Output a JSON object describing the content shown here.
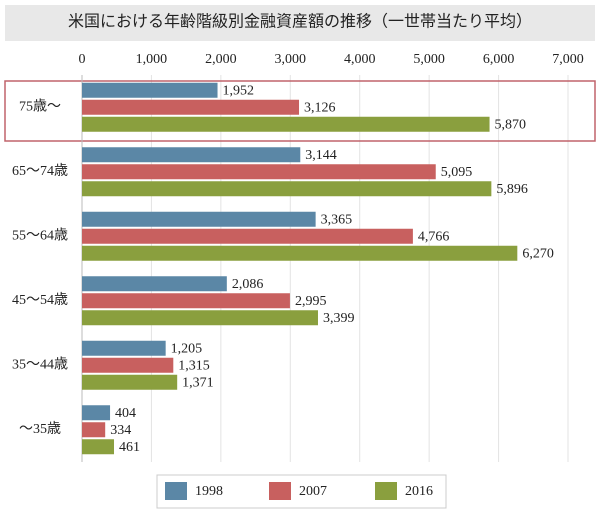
{
  "chart_data": {
    "type": "bar",
    "orientation": "horizontal",
    "title": "米国における年齢階級別金融資産額の推移（一世帯当たり平均）",
    "categories": [
      "75歳〜",
      "65〜74歳",
      "55〜64歳",
      "45〜54歳",
      "35〜44歳",
      "〜35歳"
    ],
    "series": [
      {
        "name": "1998",
        "color": "#5b87a6",
        "values": [
          1952,
          3144,
          3365,
          2086,
          1205,
          404
        ],
        "value_labels": [
          "1,952",
          "3,144",
          "3,365",
          "2,086",
          "1,205",
          "404"
        ]
      },
      {
        "name": "2007",
        "color": "#c8605f",
        "values": [
          3126,
          5095,
          4766,
          2995,
          1315,
          334
        ],
        "value_labels": [
          "3,126",
          "5,095",
          "4,766",
          "2,995",
          "1,315",
          "334"
        ]
      },
      {
        "name": "2016",
        "color": "#8a9f3e",
        "values": [
          5870,
          5896,
          6270,
          3399,
          1371,
          461
        ],
        "value_labels": [
          "5,870",
          "5,896",
          "6,270",
          "3,399",
          "1,371",
          "461"
        ]
      }
    ],
    "xlim": [
      0,
      7000
    ],
    "xticks": [
      0,
      {
        "value": 1000,
        "label": "1,000"
      },
      {
        "value": 2000,
        "label": "2,000"
      },
      {
        "value": 3000,
        "label": "3,000"
      },
      {
        "value": 4000,
        "label": "4,000"
      },
      {
        "value": 5000,
        "label": "5,000"
      },
      {
        "value": 6000,
        "label": "6,000"
      },
      {
        "value": 7000,
        "label": "7,000"
      }
    ],
    "grid": true,
    "legend": "bottom"
  }
}
